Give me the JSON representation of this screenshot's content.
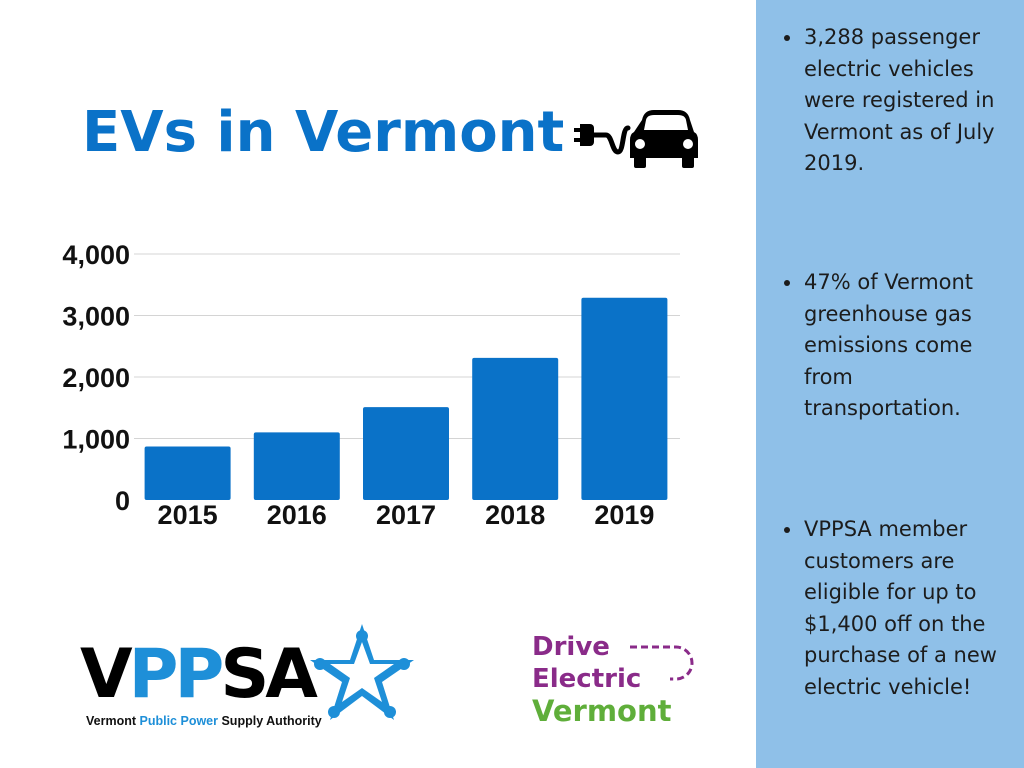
{
  "title": "EVs in Vermont",
  "icons": {
    "title_icon": "ev-plug-car-icon",
    "logo_icon": "star-people-icon"
  },
  "colors": {
    "title": "#0a72c8",
    "bar": "#0a72c8",
    "panel": "#8fc0e8",
    "vppsa_blue": "#1e8fd8",
    "drive_purple": "#8a2b89",
    "drive_green": "#5fae3a"
  },
  "chart_data": {
    "type": "bar",
    "categories": [
      "2015",
      "2016",
      "2017",
      "2018",
      "2019"
    ],
    "values": [
      870,
      1100,
      1510,
      2310,
      3288
    ],
    "ylim": [
      0,
      4000
    ],
    "yticks": [
      0,
      1000,
      2000,
      3000,
      4000
    ],
    "ytick_labels": [
      "0",
      "1,000",
      "2,000",
      "3,000",
      "4,000"
    ],
    "grid": true,
    "xlabel": "",
    "ylabel": ""
  },
  "facts": [
    {
      "text": "3,288 passenger electric vehicles were registered in Vermont as of July 2019."
    },
    {
      "text": "47% of Vermont greenhouse gas emissions come from transportation."
    },
    {
      "text": "VPPSA member customers are eligible for up to $1,400 off on the purchase of a new electric vehicle!"
    }
  ],
  "vppsa": {
    "wordmark_v": "V",
    "wordmark_pp": "PP",
    "wordmark_sa": "SA",
    "sub_1": "Vermont ",
    "sub_2": "Public Power",
    "sub_3": " Supply Authority"
  },
  "drive_electric": {
    "line1": "Drive",
    "line2": "Electric",
    "line3": "Vermont"
  }
}
